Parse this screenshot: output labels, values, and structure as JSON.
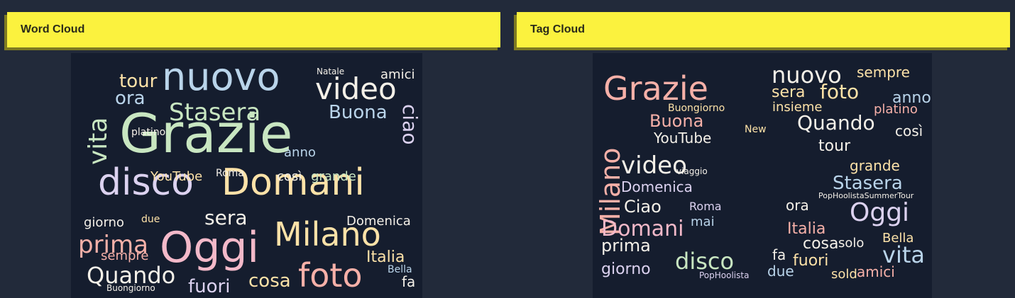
{
  "colors": {
    "accent": "#fbf23e",
    "background": "#222a3a",
    "cloud_bg": "#151d2e",
    "palette": [
      "#f6b0a8",
      "#c8e6c1",
      "#dcd2f0",
      "#fde2a8",
      "#b9d4ea",
      "#f4f0e8",
      "#f3b9c9"
    ]
  },
  "panels": [
    {
      "title": "Word Cloud"
    },
    {
      "title": "Tag Cloud"
    }
  ],
  "clouds": [
    {
      "words": [
        {
          "t": "Grazie",
          "s": 1
        },
        {
          "t": "disco",
          "s": 2
        },
        {
          "t": "Domani",
          "s": 3
        },
        {
          "t": "nuovo",
          "s": 4
        },
        {
          "t": "Oggi",
          "s": 6
        },
        {
          "t": "Milano",
          "s": 3
        },
        {
          "t": "foto",
          "s": 0
        },
        {
          "t": "video",
          "s": 5
        },
        {
          "t": "Stasera",
          "s": 1
        },
        {
          "t": "vita",
          "s": 1
        },
        {
          "t": "tour",
          "s": 3
        },
        {
          "t": "ora",
          "s": 4
        },
        {
          "t": "Buona",
          "s": 4
        },
        {
          "t": "ciao",
          "s": 2
        },
        {
          "t": "prima",
          "s": 0
        },
        {
          "t": "Quando",
          "s": 5
        },
        {
          "t": "fuori",
          "s": 2
        },
        {
          "t": "cosa",
          "s": 3
        },
        {
          "t": "Italia",
          "s": 3
        },
        {
          "t": "Domenica",
          "s": 5
        },
        {
          "t": "sera",
          "s": 5
        },
        {
          "t": "amici",
          "s": 5
        },
        {
          "t": "YouTube",
          "s": 3
        },
        {
          "t": "grande",
          "s": 1
        },
        {
          "t": "anno",
          "s": 4
        },
        {
          "t": "sempre",
          "s": 0
        },
        {
          "t": "giorno",
          "s": 5
        },
        {
          "t": "fa",
          "s": 5
        },
        {
          "t": "Bella",
          "s": 4
        },
        {
          "t": "platino",
          "s": 5
        },
        {
          "t": "così",
          "s": 5
        },
        {
          "t": "Roma",
          "s": 5
        },
        {
          "t": "due",
          "s": 3
        },
        {
          "t": "Natale",
          "s": 5
        },
        {
          "t": "Buongiorno",
          "s": 5
        }
      ]
    },
    {
      "words": [
        {
          "t": "Grazie",
          "s": 0
        },
        {
          "t": "Milano",
          "s": 0
        },
        {
          "t": "Domani",
          "s": 6
        },
        {
          "t": "nuovo",
          "s": 5
        },
        {
          "t": "Oggi",
          "s": 2
        },
        {
          "t": "vita",
          "s": 4
        },
        {
          "t": "disco",
          "s": 1
        },
        {
          "t": "video",
          "s": 5
        },
        {
          "t": "foto",
          "s": 3
        },
        {
          "t": "Quando",
          "s": 5
        },
        {
          "t": "Stasera",
          "s": 4
        },
        {
          "t": "sera",
          "s": 3
        },
        {
          "t": "sempre",
          "s": 3
        },
        {
          "t": "Buona",
          "s": 0
        },
        {
          "t": "YouTube",
          "s": 5
        },
        {
          "t": "Ciao",
          "s": 5
        },
        {
          "t": "prima",
          "s": 5
        },
        {
          "t": "giorno",
          "s": 2
        },
        {
          "t": "Italia",
          "s": 0
        },
        {
          "t": "cosa",
          "s": 5
        },
        {
          "t": "fuori",
          "s": 3
        },
        {
          "t": "amici",
          "s": 0
        },
        {
          "t": "Domenica",
          "s": 2
        },
        {
          "t": "Bella",
          "s": 3
        },
        {
          "t": "grande",
          "s": 3
        },
        {
          "t": "tour",
          "s": 5
        },
        {
          "t": "anno",
          "s": 4
        },
        {
          "t": "platino",
          "s": 0
        },
        {
          "t": "insieme",
          "s": 3
        },
        {
          "t": "Roma",
          "s": 2
        },
        {
          "t": "ora",
          "s": 5
        },
        {
          "t": "fa",
          "s": 5
        },
        {
          "t": "due",
          "s": 4
        },
        {
          "t": "così",
          "s": 5
        },
        {
          "t": "sold",
          "s": 3
        },
        {
          "t": "solo",
          "s": 5
        },
        {
          "t": "New",
          "s": 3
        },
        {
          "t": "Buongiorno",
          "s": 3
        },
        {
          "t": "mai",
          "s": 4
        },
        {
          "t": "viaggio",
          "s": 5
        },
        {
          "t": "PopHoolista",
          "s": 2
        },
        {
          "t": "PopHoolistaSummerTour",
          "s": 5
        }
      ]
    }
  ]
}
